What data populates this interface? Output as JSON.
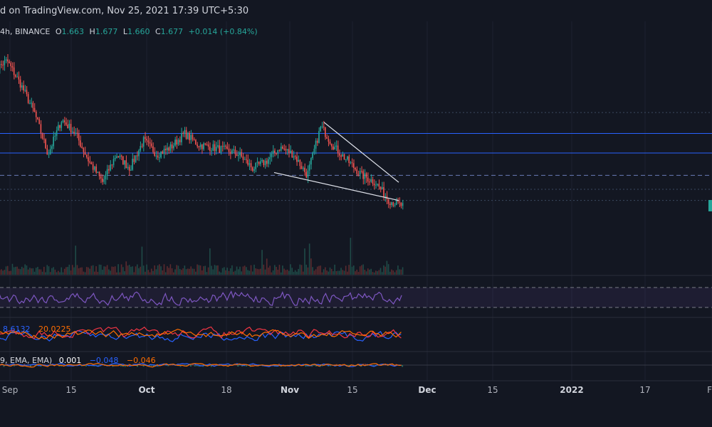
{
  "header": {
    "published": "d on TradingView.com, Nov 25, 2021 17:39 UTC+5:30"
  },
  "ohlc": {
    "interval_exchange": "4h, BINANCE",
    "o_label": "O",
    "o_value": "1.663",
    "h_label": "H",
    "h_value": "1.677",
    "l_label": "L",
    "l_value": "1.660",
    "c_label": "C",
    "c_value": "1.677",
    "change": "+0.014 (+0.84%)"
  },
  "indicators": {
    "dmi_a": "8.6132",
    "dmi_b": "20.0225",
    "macd_prefix": "9, EMA, EMA)",
    "macd_a": "0.001",
    "macd_b": "−0.048",
    "macd_c": "−0.046"
  },
  "colors": {
    "background": "#131722",
    "up": "#26a69a",
    "down": "#ef5350",
    "level_line": "#2962ff",
    "rsi": "#7e57c2",
    "dmi_plus": "#2962ff",
    "dmi_minus": "#f23645",
    "adx": "#ff6d00",
    "macd_line": "#2962ff",
    "signal_line": "#ff6d00",
    "price_tag": "#26a69a"
  },
  "chart_data": {
    "type": "candlestick",
    "x_ticks": [
      "Sep",
      "15",
      "Oct",
      "18",
      "Nov",
      "15",
      "Dec",
      "15",
      "2022",
      "17",
      "Fe"
    ],
    "major_ticks": [
      "Oct",
      "Nov",
      "Dec",
      "2022"
    ],
    "close_path": [
      2.65,
      2.72,
      2.55,
      2.35,
      2.05,
      2.3,
      2.2,
      2.0,
      1.85,
      2.05,
      1.95,
      2.15,
      2.05,
      2.1,
      2.2,
      2.12,
      2.1,
      2.08,
      2.05,
      1.95,
      2.0,
      2.1,
      2.05,
      1.9,
      2.25,
      2.1,
      2.0,
      1.9,
      1.85,
      1.72,
      1.68
    ],
    "trendlines": [
      {
        "from": [
          "Nov 09",
          2.28
        ],
        "to": [
          "Nov 24",
          1.85
        ]
      },
      {
        "from": [
          "Oct 26",
          1.92
        ],
        "to": [
          "Nov 24",
          1.72
        ]
      }
    ],
    "horizontal_levels": [
      2.2,
      2.06
    ],
    "dashed_levels": [
      1.9
    ],
    "dotted_levels": [
      2.35,
      1.8,
      1.72
    ],
    "last_price": 1.677
  }
}
